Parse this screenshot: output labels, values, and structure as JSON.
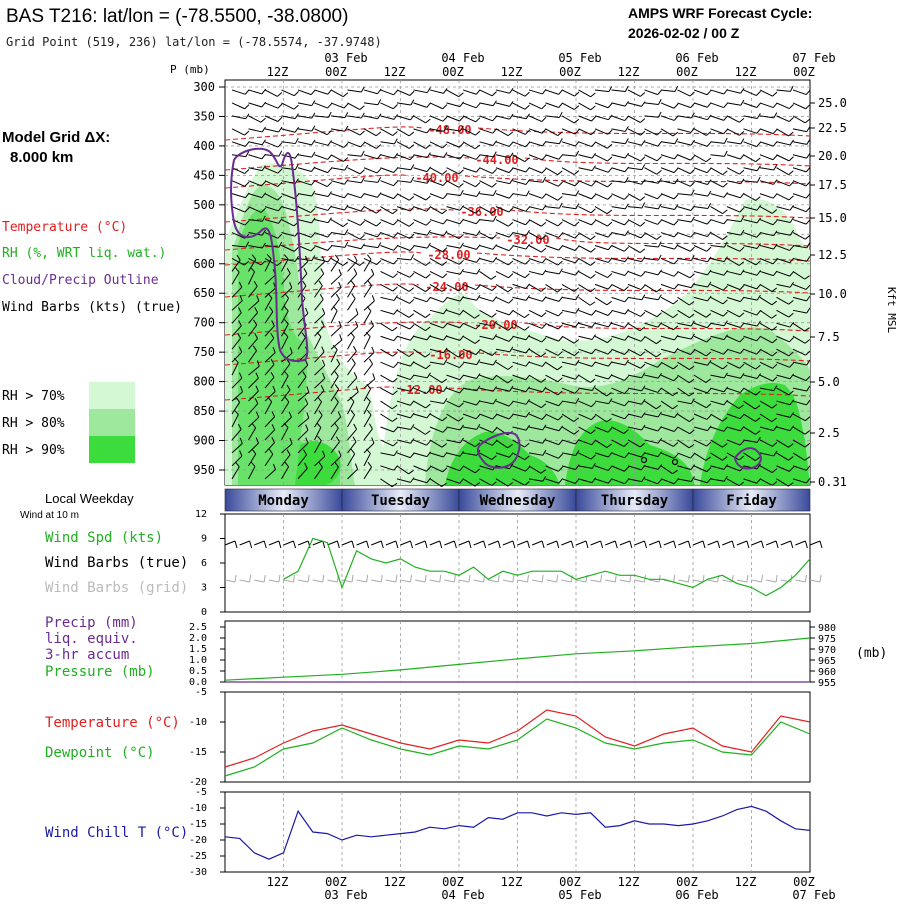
{
  "header": {
    "title": "BAS T216:  lat/lon = (-78.5500, -38.0800)",
    "subtitle": "Grid Point (519, 236) lat/lon = (-78.5574, -37.9748)",
    "cycle_label": "AMPS WRF Forecast Cycle:",
    "cycle_value": "2026-02-02 / 00  Z"
  },
  "left_panel": {
    "model_grid_label": "Model Grid ΔX:",
    "model_grid_value": "8.000 km",
    "legend": [
      {
        "label": "Temperature (°C)",
        "color": "#e02020"
      },
      {
        "label": "RH (%, WRT liq. wat.)",
        "color": "#20b020"
      },
      {
        "label": "Cloud/Precip Outline",
        "color": "#6a2c91"
      },
      {
        "label": "Wind Barbs (kts) (true)",
        "color": "#000000"
      }
    ],
    "rh_legend": [
      {
        "label": "RH > 70%",
        "color": "#d4f7d4"
      },
      {
        "label": "RH > 80%",
        "color": "#9ee89e"
      },
      {
        "label": "RH > 90%",
        "color": "#3cdc3c"
      }
    ]
  },
  "time_axis": {
    "top_hour_labels": [
      "12Z",
      "00Z",
      "12Z",
      "00Z",
      "12Z",
      "00Z",
      "12Z",
      "00Z",
      "12Z",
      "00Z"
    ],
    "top_date_labels": [
      "03 Feb",
      "04 Feb",
      "05 Feb",
      "06 Feb",
      "07 Feb"
    ],
    "bottom_hour_labels": [
      "12Z",
      "00Z",
      "12Z",
      "00Z",
      "12Z",
      "00Z",
      "12Z",
      "00Z",
      "12Z",
      "00Z"
    ],
    "bottom_date_labels": [
      "03 Feb",
      "04 Feb",
      "05 Feb",
      "06 Feb",
      "07 Feb"
    ],
    "weekday_header": "Local Weekday",
    "weekdays": [
      "Monday",
      "Tuesday",
      "Wednesday",
      "Thursday",
      "Friday"
    ]
  },
  "chart_data": [
    {
      "type": "heatmap",
      "panel": "vertical-profile",
      "ylabel": "P (mb)",
      "y_ticks_mb": [
        300,
        350,
        400,
        450,
        500,
        550,
        600,
        650,
        700,
        750,
        800,
        850,
        900,
        950
      ],
      "right_axis_label": "Kft MSL",
      "right_axis_ticks": [
        "25.0",
        "22.5",
        "20.0",
        "17.5",
        "15.0",
        "12.5",
        "10.0",
        "7.5",
        "5.0",
        "2.5",
        "0.31"
      ],
      "temperature_contour_labels": [
        "-48.00",
        "-44.00",
        "-40.00",
        "-36.00",
        "-32.00",
        "-28.00",
        "-24.00",
        "-20.00",
        "-16.00",
        "-12.00"
      ]
    },
    {
      "type": "line",
      "panel": "surface-wind",
      "subtitle": "Wind at 10 m",
      "y_ticks": [
        0,
        3,
        6,
        9,
        12
      ],
      "ylim": [
        0,
        12
      ],
      "legend": [
        "Wind Spd (kts)",
        "Wind Barbs (true)",
        "Wind Barbs (grid)"
      ],
      "series": [
        {
          "name": "Wind Spd (kts)",
          "color": "#20b020",
          "x_hours": [
            12,
            15,
            18,
            21,
            24,
            27,
            30,
            33,
            36,
            39,
            42,
            45,
            48,
            51,
            54,
            57,
            60,
            63,
            66,
            69,
            72,
            75,
            78,
            81,
            84,
            87,
            90,
            93,
            96,
            99,
            102,
            105,
            108,
            111,
            114,
            117,
            120
          ],
          "values": [
            4.0,
            5.0,
            9.0,
            8.5,
            3.0,
            7.5,
            6.5,
            6.0,
            6.5,
            5.5,
            5.0,
            5.0,
            4.5,
            5.5,
            4.0,
            5.0,
            4.5,
            5.0,
            5.0,
            5.0,
            4.0,
            4.5,
            5.0,
            4.5,
            4.5,
            4.0,
            4.0,
            3.5,
            3.0,
            4.0,
            4.5,
            3.5,
            3.0,
            2.0,
            3.0,
            4.5,
            6.5
          ]
        }
      ]
    },
    {
      "type": "line",
      "panel": "precip-pressure",
      "legend": [
        "Precip (mm)",
        "liq. equiv.",
        "3-hr accum",
        "Pressure (mb)"
      ],
      "y_left_ticks": [
        "0.0",
        "0.5",
        "1.0",
        "1.5",
        "2.0",
        "2.5"
      ],
      "y_right_ticks": [
        "955",
        "960",
        "965",
        "970",
        "975",
        "980"
      ],
      "ylim_left": [
        0,
        2.5
      ],
      "ylim_right": [
        955,
        980
      ],
      "series": [
        {
          "name": "Pressure (mb)",
          "color": "#20b020",
          "x_hours": [
            0,
            12,
            24,
            36,
            48,
            60,
            72,
            84,
            96,
            108,
            120
          ],
          "values": [
            955.8,
            957.2,
            958.5,
            960.5,
            963.0,
            965.5,
            967.8,
            969.2,
            971.0,
            972.5,
            975.0
          ]
        },
        {
          "name": "Precip (mm)",
          "color": "#6a2c91",
          "x_hours": [
            0,
            120
          ],
          "values": [
            0.0,
            0.0
          ]
        }
      ]
    },
    {
      "type": "line",
      "panel": "temperature-dewpoint",
      "legend": [
        "Temperature (°C)",
        "Dewpoint (°C)"
      ],
      "y_ticks": [
        -20,
        -15,
        -10,
        -5
      ],
      "ylim": [
        -20,
        -5
      ],
      "series": [
        {
          "name": "Temperature (°C)",
          "color": "#e02020",
          "x_hours": [
            0,
            6,
            12,
            18,
            24,
            30,
            36,
            42,
            48,
            54,
            60,
            66,
            72,
            78,
            84,
            90,
            96,
            102,
            108,
            114,
            120
          ],
          "values": [
            -17.5,
            -16.0,
            -13.5,
            -11.5,
            -10.5,
            -12.0,
            -13.5,
            -14.5,
            -13.0,
            -13.5,
            -11.5,
            -8.0,
            -9.0,
            -12.5,
            -14.0,
            -12.0,
            -11.0,
            -14.0,
            -15.0,
            -9.0,
            -10.0
          ]
        },
        {
          "name": "Dewpoint (°C)",
          "color": "#20b020",
          "x_hours": [
            0,
            6,
            12,
            18,
            24,
            30,
            36,
            42,
            48,
            54,
            60,
            66,
            72,
            78,
            84,
            90,
            96,
            102,
            108,
            114,
            120
          ],
          "values": [
            -19.0,
            -17.5,
            -14.5,
            -13.5,
            -11.0,
            -13.0,
            -14.5,
            -15.5,
            -14.0,
            -14.5,
            -13.0,
            -9.5,
            -11.0,
            -13.5,
            -14.5,
            -13.5,
            -13.0,
            -15.0,
            -15.5,
            -10.0,
            -12.0
          ]
        }
      ]
    },
    {
      "type": "line",
      "panel": "wind-chill",
      "legend": [
        "Wind Chill T (°C)"
      ],
      "y_ticks": [
        -30,
        -25,
        -20,
        -15,
        -10,
        -5
      ],
      "ylim": [
        -30,
        -5
      ],
      "series": [
        {
          "name": "Wind Chill T (°C)",
          "color": "#1a1aa8",
          "x_hours": [
            0,
            3,
            6,
            9,
            12,
            15,
            18,
            21,
            24,
            27,
            30,
            33,
            36,
            39,
            42,
            45,
            48,
            51,
            54,
            57,
            60,
            63,
            66,
            69,
            72,
            75,
            78,
            81,
            84,
            87,
            90,
            93,
            96,
            99,
            102,
            105,
            108,
            111,
            114,
            117,
            120
          ],
          "values": [
            -19.0,
            -19.5,
            -24.0,
            -26.0,
            -24.0,
            -11.0,
            -17.5,
            -18.0,
            -20.0,
            -18.5,
            -19.0,
            -18.5,
            -18.0,
            -17.5,
            -16.0,
            -16.5,
            -15.5,
            -16.0,
            -13.0,
            -13.5,
            -11.5,
            -11.5,
            -12.5,
            -11.5,
            -12.0,
            -11.5,
            -16.0,
            -15.5,
            -14.0,
            -15.0,
            -15.0,
            -15.5,
            -15.0,
            -14.0,
            -12.5,
            -10.5,
            -9.5,
            -11.0,
            -14.0,
            -16.5,
            -17.0
          ]
        }
      ]
    }
  ]
}
